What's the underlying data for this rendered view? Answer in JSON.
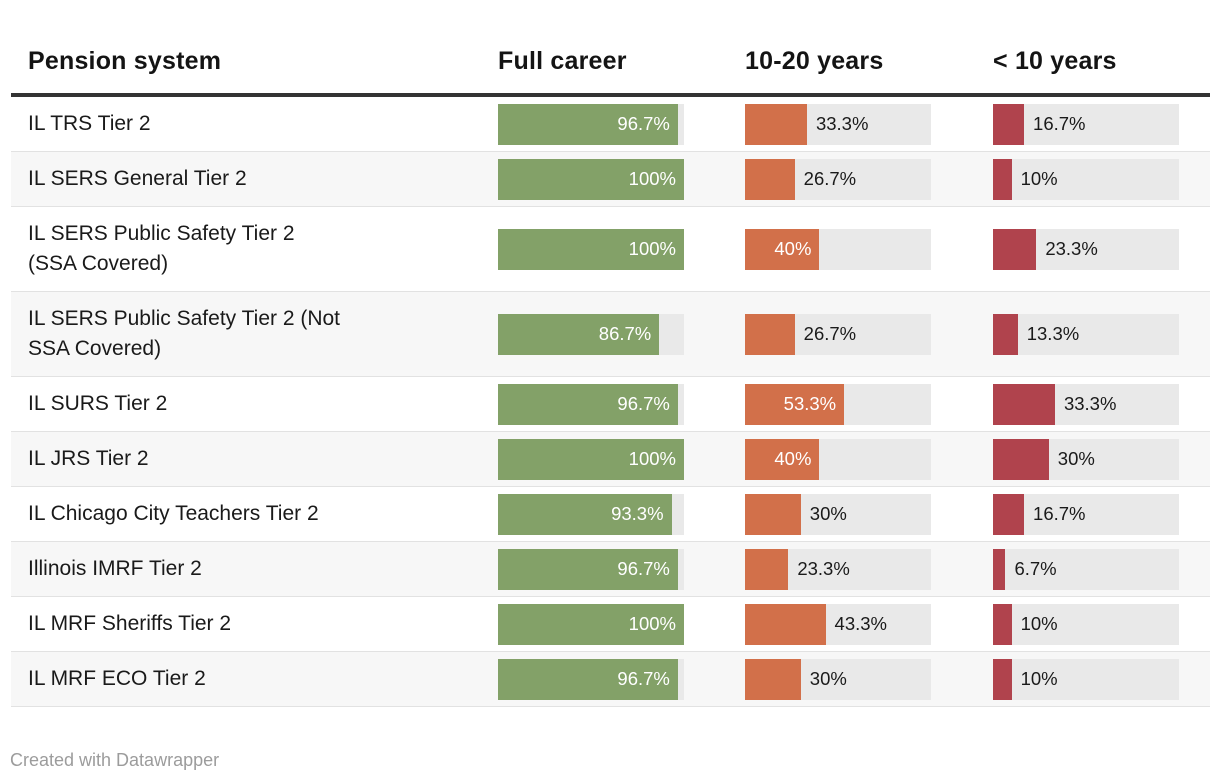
{
  "header": {
    "columns": [
      "Pension system",
      "Full career",
      "10-20 years",
      "< 10 years"
    ]
  },
  "colors": {
    "full_career_bar": "#83a168",
    "mid_career_bar": "#d2704a",
    "short_career_bar": "#b0434d",
    "bar_track": "#e9e9e9",
    "alt_row_bg": "#f7f7f7",
    "header_divider": "#333333",
    "row_separator": "#e2e2e2",
    "text": "#1a1a1a",
    "inside_label": "#ffffff",
    "footer_text": "#9c9c9c"
  },
  "chart_data": {
    "type": "bar",
    "orientation": "horizontal",
    "title": "",
    "xlim": [
      0,
      100
    ],
    "value_suffix": "%",
    "grid": false,
    "legend_position": "column-headers",
    "categories": [
      "IL TRS Tier 2",
      "IL SERS General Tier 2",
      "IL SERS Public Safety Tier 2 (SSA Covered)",
      "IL SERS Public Safety Tier 2 (Not SSA Covered)",
      "IL SURS Tier 2",
      "IL JRS Tier 2",
      "IL Chicago City Teachers Tier 2",
      "Illinois IMRF Tier 2",
      "IL MRF Sheriffs Tier 2",
      "IL MRF ECO Tier 2"
    ],
    "series": [
      {
        "name": "Full career",
        "color": "#83a168",
        "values": [
          96.7,
          100,
          100,
          86.7,
          96.7,
          100,
          93.3,
          96.7,
          100,
          96.7
        ]
      },
      {
        "name": "10-20 years",
        "color": "#d2704a",
        "values": [
          33.3,
          26.7,
          40,
          26.7,
          53.3,
          40,
          30,
          23.3,
          43.3,
          30
        ]
      },
      {
        "name": "< 10 years",
        "color": "#b0434d",
        "values": [
          16.7,
          10,
          23.3,
          13.3,
          33.3,
          30,
          16.7,
          6.7,
          10,
          10
        ]
      }
    ]
  },
  "rows": [
    {
      "label_lines": [
        "IL TRS Tier 2"
      ],
      "bars": [
        {
          "value": 96.7,
          "label": "96.7%",
          "inside": true
        },
        {
          "value": 33.3,
          "label": "33.3%",
          "inside": false
        },
        {
          "value": 16.7,
          "label": "16.7%",
          "inside": false
        }
      ]
    },
    {
      "label_lines": [
        "IL SERS General Tier 2"
      ],
      "bars": [
        {
          "value": 100,
          "label": "100%",
          "inside": true
        },
        {
          "value": 26.7,
          "label": "26.7%",
          "inside": false
        },
        {
          "value": 10,
          "label": "10%",
          "inside": false
        }
      ]
    },
    {
      "label_lines": [
        "IL SERS Public Safety Tier 2",
        "(SSA Covered)"
      ],
      "bars": [
        {
          "value": 100,
          "label": "100%",
          "inside": true
        },
        {
          "value": 40,
          "label": "40%",
          "inside": true
        },
        {
          "value": 23.3,
          "label": "23.3%",
          "inside": false
        }
      ]
    },
    {
      "label_lines": [
        "IL SERS Public Safety Tier 2 (Not",
        "SSA Covered)"
      ],
      "bars": [
        {
          "value": 86.7,
          "label": "86.7%",
          "inside": true
        },
        {
          "value": 26.7,
          "label": "26.7%",
          "inside": false
        },
        {
          "value": 13.3,
          "label": "13.3%",
          "inside": false
        }
      ]
    },
    {
      "label_lines": [
        "IL SURS Tier 2"
      ],
      "bars": [
        {
          "value": 96.7,
          "label": "96.7%",
          "inside": true
        },
        {
          "value": 53.3,
          "label": "53.3%",
          "inside": true
        },
        {
          "value": 33.3,
          "label": "33.3%",
          "inside": false
        }
      ]
    },
    {
      "label_lines": [
        "IL JRS Tier 2"
      ],
      "bars": [
        {
          "value": 100,
          "label": "100%",
          "inside": true
        },
        {
          "value": 40,
          "label": "40%",
          "inside": true
        },
        {
          "value": 30,
          "label": "30%",
          "inside": false
        }
      ]
    },
    {
      "label_lines": [
        "IL Chicago City Teachers Tier 2"
      ],
      "bars": [
        {
          "value": 93.3,
          "label": "93.3%",
          "inside": true
        },
        {
          "value": 30,
          "label": "30%",
          "inside": false
        },
        {
          "value": 16.7,
          "label": "16.7%",
          "inside": false
        }
      ]
    },
    {
      "label_lines": [
        "Illinois IMRF Tier 2"
      ],
      "bars": [
        {
          "value": 96.7,
          "label": "96.7%",
          "inside": true
        },
        {
          "value": 23.3,
          "label": "23.3%",
          "inside": false
        },
        {
          "value": 6.7,
          "label": "6.7%",
          "inside": false
        }
      ]
    },
    {
      "label_lines": [
        "IL MRF Sheriffs Tier 2"
      ],
      "bars": [
        {
          "value": 100,
          "label": "100%",
          "inside": true
        },
        {
          "value": 43.3,
          "label": "43.3%",
          "inside": false
        },
        {
          "value": 10,
          "label": "10%",
          "inside": false
        }
      ]
    },
    {
      "label_lines": [
        "IL MRF ECO Tier 2"
      ],
      "bars": [
        {
          "value": 96.7,
          "label": "96.7%",
          "inside": true
        },
        {
          "value": 30,
          "label": "30%",
          "inside": false
        },
        {
          "value": 10,
          "label": "10%",
          "inside": false
        }
      ]
    }
  ],
  "footer": {
    "credit": "Created with Datawrapper"
  }
}
